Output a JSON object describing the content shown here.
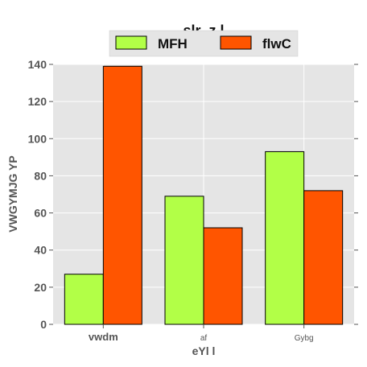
{
  "chart_data": {
    "type": "bar",
    "title": "slr_z l",
    "xlabel": "eYl l",
    "ylabel": "VWGYMJG YP",
    "categories": [
      "vwdm",
      "af",
      "Gybg"
    ],
    "series": [
      {
        "name": "MFH",
        "color": "#b2ff47",
        "values": [
          27,
          69,
          93
        ]
      },
      {
        "name": "flwC",
        "color": "#ff5500",
        "values": [
          139,
          52,
          72
        ]
      }
    ],
    "ylim": [
      0,
      140
    ],
    "yticks": [
      0,
      20,
      40,
      60,
      80,
      100,
      120,
      140
    ],
    "grid": true,
    "legend_position": "top-center",
    "background_color": "#e5e5e5"
  }
}
